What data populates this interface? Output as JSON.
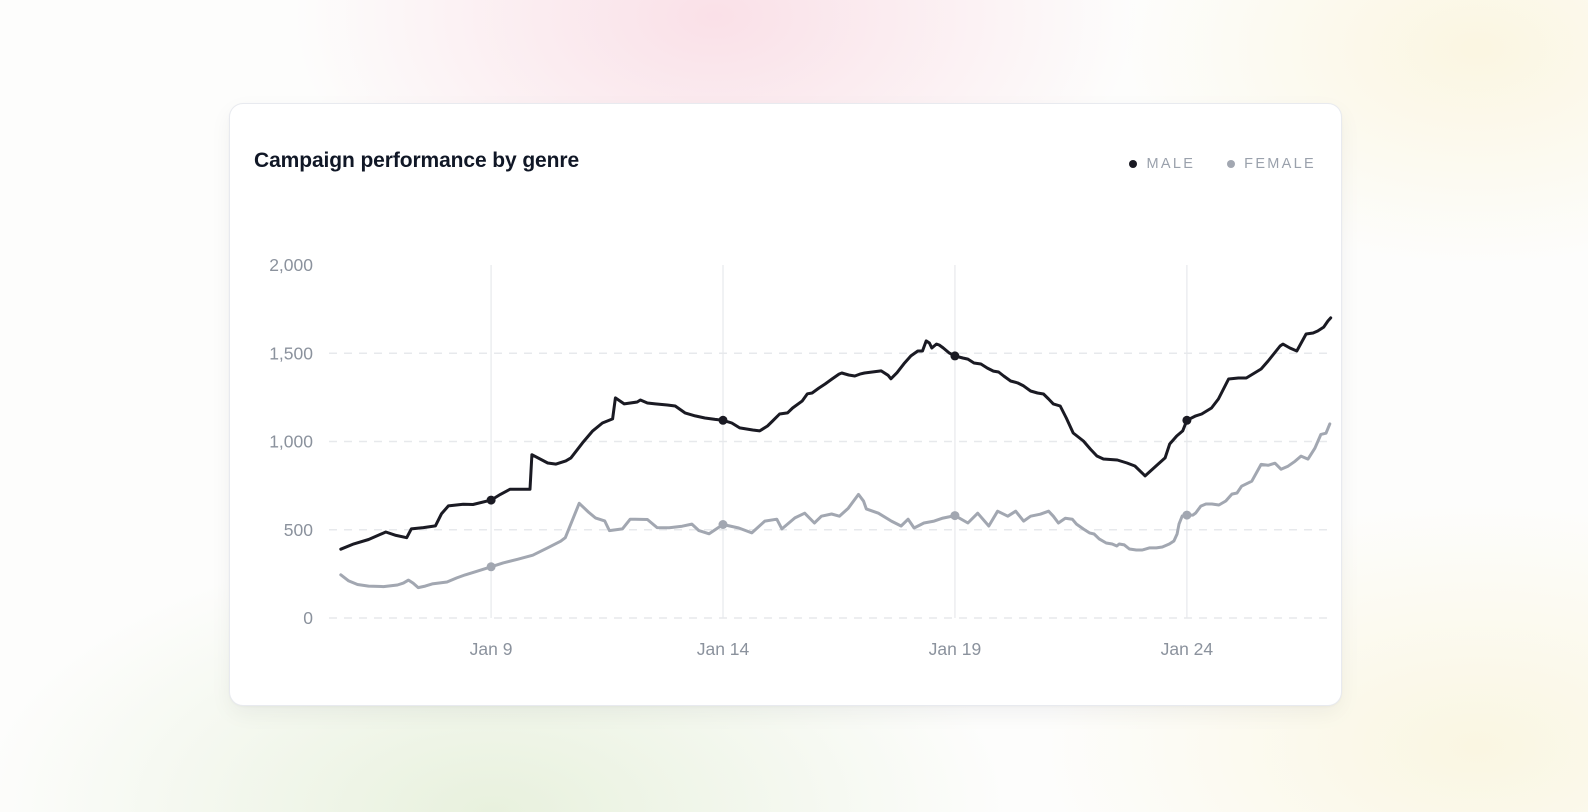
{
  "card": {
    "title": "Campaign performance by genre"
  },
  "legend": {
    "items": [
      {
        "label": "MALE",
        "color": "#1a1a23"
      },
      {
        "label": "FEMALE",
        "color": "#a2a7b1"
      }
    ]
  },
  "colors": {
    "male_line": "#1a1a23",
    "female_line": "#a2a7b1",
    "grid": "#e7e9ec",
    "tick_text": "#8b929d",
    "title_text": "#101726",
    "legend_text": "#9aa1ac",
    "card_background": "#ffffff"
  },
  "chart_data": {
    "type": "line",
    "title": "Campaign performance by genre",
    "xlabel": "",
    "ylabel": "",
    "x_unit": "day of January",
    "xlim": [
      5.7,
      27.15
    ],
    "ylim": [
      0,
      2000
    ],
    "grid": {
      "horizontal": "dashed",
      "vertical": "solid"
    },
    "legend_position": "top-right",
    "x_ticks": [
      {
        "value": 9,
        "label": "Jan 9"
      },
      {
        "value": 14,
        "label": "Jan 14"
      },
      {
        "value": 19,
        "label": "Jan 19"
      },
      {
        "value": 24,
        "label": "Jan 24"
      }
    ],
    "y_ticks": [
      {
        "value": 0,
        "label": "0"
      },
      {
        "value": 500,
        "label": "500"
      },
      {
        "value": 1000,
        "label": "1,000"
      },
      {
        "value": 1500,
        "label": "1,500"
      },
      {
        "value": 2000,
        "label": "2,000"
      }
    ],
    "y_gridlines": [
      0,
      500,
      1000,
      1500
    ],
    "marker_days": [
      9,
      14,
      19,
      24
    ],
    "series": [
      {
        "name": "MALE",
        "color": "#1a1a23",
        "marker_values": {
          "Jan 9": 668,
          "Jan 14": 1120,
          "Jan 19": 1485,
          "Jan 24": 1120
        },
        "points": [
          [
            5.76,
            390
          ],
          [
            6.04,
            420
          ],
          [
            6.36,
            445
          ],
          [
            6.73,
            487
          ],
          [
            6.95,
            468
          ],
          [
            7.18,
            455
          ],
          [
            7.28,
            505
          ],
          [
            7.54,
            512
          ],
          [
            7.8,
            522
          ],
          [
            7.93,
            590
          ],
          [
            8.08,
            635
          ],
          [
            8.4,
            645
          ],
          [
            8.61,
            643
          ],
          [
            9.0,
            668
          ],
          [
            9.2,
            700
          ],
          [
            9.41,
            730
          ],
          [
            9.84,
            730
          ],
          [
            9.88,
            925
          ],
          [
            10.22,
            878
          ],
          [
            10.4,
            872
          ],
          [
            10.61,
            890
          ],
          [
            10.72,
            907
          ],
          [
            10.97,
            992
          ],
          [
            11.19,
            1060
          ],
          [
            11.4,
            1105
          ],
          [
            11.62,
            1128
          ],
          [
            11.68,
            1247
          ],
          [
            11.87,
            1213
          ],
          [
            12.15,
            1224
          ],
          [
            12.22,
            1235
          ],
          [
            12.37,
            1218
          ],
          [
            12.54,
            1213
          ],
          [
            12.8,
            1207
          ],
          [
            12.97,
            1201
          ],
          [
            13.18,
            1162
          ],
          [
            13.4,
            1145
          ],
          [
            13.61,
            1133
          ],
          [
            13.83,
            1125
          ],
          [
            14.0,
            1120
          ],
          [
            14.19,
            1105
          ],
          [
            14.36,
            1077
          ],
          [
            14.64,
            1065
          ],
          [
            14.79,
            1060
          ],
          [
            14.96,
            1088
          ],
          [
            15.07,
            1116
          ],
          [
            15.22,
            1156
          ],
          [
            15.39,
            1162
          ],
          [
            15.5,
            1190
          ],
          [
            15.71,
            1230
          ],
          [
            15.82,
            1270
          ],
          [
            15.92,
            1275
          ],
          [
            16.07,
            1303
          ],
          [
            16.2,
            1326
          ],
          [
            16.35,
            1354
          ],
          [
            16.5,
            1382
          ],
          [
            16.56,
            1388
          ],
          [
            16.71,
            1377
          ],
          [
            16.84,
            1371
          ],
          [
            16.95,
            1382
          ],
          [
            17.05,
            1388
          ],
          [
            17.26,
            1395
          ],
          [
            17.41,
            1400
          ],
          [
            17.56,
            1375
          ],
          [
            17.62,
            1355
          ],
          [
            17.75,
            1390
          ],
          [
            17.9,
            1440
          ],
          [
            18.05,
            1485
          ],
          [
            18.2,
            1513
          ],
          [
            18.3,
            1513
          ],
          [
            18.38,
            1570
          ],
          [
            18.45,
            1558
          ],
          [
            18.5,
            1530
          ],
          [
            18.6,
            1552
          ],
          [
            18.66,
            1547
          ],
          [
            18.75,
            1530
          ],
          [
            18.88,
            1501
          ],
          [
            19.0,
            1485
          ],
          [
            19.17,
            1473
          ],
          [
            19.28,
            1467
          ],
          [
            19.41,
            1445
          ],
          [
            19.56,
            1439
          ],
          [
            19.7,
            1416
          ],
          [
            19.83,
            1399
          ],
          [
            19.94,
            1394
          ],
          [
            20.05,
            1371
          ],
          [
            20.2,
            1343
          ],
          [
            20.35,
            1332
          ],
          [
            20.48,
            1315
          ],
          [
            20.63,
            1286
          ],
          [
            20.78,
            1275
          ],
          [
            20.91,
            1269
          ],
          [
            21.02,
            1241
          ],
          [
            21.12,
            1213
          ],
          [
            21.27,
            1201
          ],
          [
            21.4,
            1133
          ],
          [
            21.55,
            1048
          ],
          [
            21.77,
            1003
          ],
          [
            21.92,
            957
          ],
          [
            22.06,
            918
          ],
          [
            22.2,
            901
          ],
          [
            22.5,
            895
          ],
          [
            22.71,
            878
          ],
          [
            22.88,
            861
          ],
          [
            23.1,
            805
          ],
          [
            23.38,
            872
          ],
          [
            23.53,
            907
          ],
          [
            23.63,
            986
          ],
          [
            23.78,
            1031
          ],
          [
            23.91,
            1060
          ],
          [
            24.0,
            1120
          ],
          [
            24.19,
            1145
          ],
          [
            24.32,
            1156
          ],
          [
            24.53,
            1190
          ],
          [
            24.68,
            1241
          ],
          [
            24.9,
            1354
          ],
          [
            25.11,
            1360
          ],
          [
            25.28,
            1360
          ],
          [
            25.6,
            1411
          ],
          [
            25.75,
            1456
          ],
          [
            26.01,
            1541
          ],
          [
            26.07,
            1552
          ],
          [
            26.22,
            1530
          ],
          [
            26.37,
            1513
          ],
          [
            26.57,
            1609
          ],
          [
            26.72,
            1615
          ],
          [
            26.82,
            1626
          ],
          [
            26.95,
            1648
          ],
          [
            27.04,
            1683
          ],
          [
            27.1,
            1700
          ]
        ]
      },
      {
        "name": "FEMALE",
        "color": "#a2a7b1",
        "marker_values": {
          "Jan 9": 290,
          "Jan 14": 530,
          "Jan 19": 580,
          "Jan 24": 583
        },
        "points": [
          [
            5.76,
            245
          ],
          [
            5.93,
            210
          ],
          [
            6.12,
            190
          ],
          [
            6.36,
            181
          ],
          [
            6.68,
            178
          ],
          [
            6.98,
            187
          ],
          [
            7.11,
            198
          ],
          [
            7.22,
            215
          ],
          [
            7.32,
            198
          ],
          [
            7.43,
            172
          ],
          [
            7.58,
            181
          ],
          [
            7.73,
            193
          ],
          [
            7.86,
            198
          ],
          [
            8.05,
            204
          ],
          [
            8.26,
            227
          ],
          [
            8.44,
            244
          ],
          [
            8.65,
            261
          ],
          [
            9.0,
            290
          ],
          [
            9.26,
            312
          ],
          [
            9.58,
            333
          ],
          [
            9.9,
            356
          ],
          [
            10.22,
            398
          ],
          [
            10.5,
            435
          ],
          [
            10.6,
            455
          ],
          [
            10.9,
            650
          ],
          [
            11.1,
            600
          ],
          [
            11.25,
            567
          ],
          [
            11.45,
            550
          ],
          [
            11.55,
            495
          ],
          [
            11.83,
            505
          ],
          [
            12.0,
            560
          ],
          [
            12.37,
            558
          ],
          [
            12.58,
            512
          ],
          [
            12.84,
            511
          ],
          [
            13.12,
            520
          ],
          [
            13.33,
            532
          ],
          [
            13.48,
            495
          ],
          [
            13.7,
            477
          ],
          [
            14.0,
            530
          ],
          [
            14.34,
            510
          ],
          [
            14.62,
            482
          ],
          [
            14.9,
            549
          ],
          [
            15.16,
            560
          ],
          [
            15.27,
            505
          ],
          [
            15.55,
            567
          ],
          [
            15.76,
            594
          ],
          [
            15.97,
            538
          ],
          [
            16.12,
            577
          ],
          [
            16.34,
            589
          ],
          [
            16.51,
            577
          ],
          [
            16.7,
            622
          ],
          [
            16.92,
            700
          ],
          [
            17.03,
            662
          ],
          [
            17.09,
            618
          ],
          [
            17.35,
            594
          ],
          [
            17.63,
            549
          ],
          [
            17.84,
            521
          ],
          [
            17.99,
            560
          ],
          [
            18.12,
            510
          ],
          [
            18.33,
            538
          ],
          [
            18.55,
            549
          ],
          [
            18.74,
            566
          ],
          [
            19.0,
            580
          ],
          [
            19.28,
            538
          ],
          [
            19.49,
            594
          ],
          [
            19.73,
            521
          ],
          [
            19.92,
            605
          ],
          [
            20.14,
            577
          ],
          [
            20.31,
            605
          ],
          [
            20.48,
            549
          ],
          [
            20.63,
            577
          ],
          [
            20.84,
            588
          ],
          [
            21.02,
            605
          ],
          [
            21.12,
            577
          ],
          [
            21.23,
            538
          ],
          [
            21.38,
            565
          ],
          [
            21.53,
            560
          ],
          [
            21.62,
            532
          ],
          [
            21.77,
            504
          ],
          [
            21.9,
            482
          ],
          [
            22.0,
            476
          ],
          [
            22.11,
            448
          ],
          [
            22.26,
            425
          ],
          [
            22.39,
            419
          ],
          [
            22.49,
            408
          ],
          [
            22.54,
            419
          ],
          [
            22.65,
            414
          ],
          [
            22.76,
            391
          ],
          [
            22.91,
            385
          ],
          [
            23.04,
            385
          ],
          [
            23.19,
            397
          ],
          [
            23.34,
            397
          ],
          [
            23.47,
            402
          ],
          [
            23.62,
            419
          ],
          [
            23.72,
            436
          ],
          [
            23.79,
            476
          ],
          [
            23.83,
            532
          ],
          [
            23.9,
            578
          ],
          [
            24.0,
            583
          ],
          [
            24.13,
            583
          ],
          [
            24.19,
            595
          ],
          [
            24.3,
            634
          ],
          [
            24.41,
            646
          ],
          [
            24.54,
            646
          ],
          [
            24.69,
            640
          ],
          [
            24.84,
            663
          ],
          [
            24.97,
            702
          ],
          [
            25.08,
            708
          ],
          [
            25.18,
            747
          ],
          [
            25.4,
            775
          ],
          [
            25.6,
            870
          ],
          [
            25.75,
            865
          ],
          [
            25.9,
            877
          ],
          [
            26.03,
            843
          ],
          [
            26.18,
            860
          ],
          [
            26.33,
            888
          ],
          [
            26.46,
            917
          ],
          [
            26.61,
            900
          ],
          [
            26.76,
            962
          ],
          [
            26.89,
            1040
          ],
          [
            27.0,
            1047
          ],
          [
            27.08,
            1100
          ]
        ]
      }
    ]
  }
}
